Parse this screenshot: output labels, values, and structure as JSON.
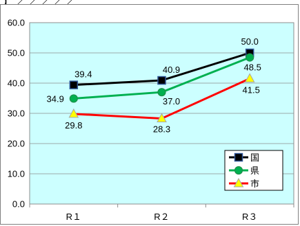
{
  "top_fragment": "】／／／／／　　　　　　　　　　　　　　　　　　　　／　／／　】",
  "chart_data": {
    "type": "line",
    "title": "",
    "xlabel": "",
    "ylabel": "",
    "categories": [
      "R１",
      "R２",
      "R３"
    ],
    "ylim": [
      0,
      60
    ],
    "yticks": [
      "0.0",
      "10.0",
      "20.0",
      "30.0",
      "40.0",
      "50.0",
      "60.0"
    ],
    "grid": true,
    "plot_background": "#ccffff",
    "legend_position": "bottom-right",
    "series": [
      {
        "name": "国",
        "values": [
          39.4,
          40.9,
          50.0
        ],
        "color": "#000000",
        "marker": "square",
        "marker_fill": "#000000",
        "marker_edge": "#2f5597",
        "labels": [
          "39.4",
          "40.9",
          "50.0"
        ]
      },
      {
        "name": "県",
        "values": [
          34.9,
          37.0,
          48.5
        ],
        "color": "#00b050",
        "marker": "circle",
        "marker_fill": "#00b050",
        "marker_edge": "#00b050",
        "labels": [
          "34.9",
          "37.0",
          "48.5"
        ]
      },
      {
        "name": "市",
        "values": [
          29.8,
          28.3,
          41.5
        ],
        "color": "#ff0000",
        "marker": "triangle",
        "marker_fill": "#ffff00",
        "marker_edge": "#a6a6a6",
        "labels": [
          "29.8",
          "28.3",
          "41.5"
        ]
      }
    ]
  }
}
